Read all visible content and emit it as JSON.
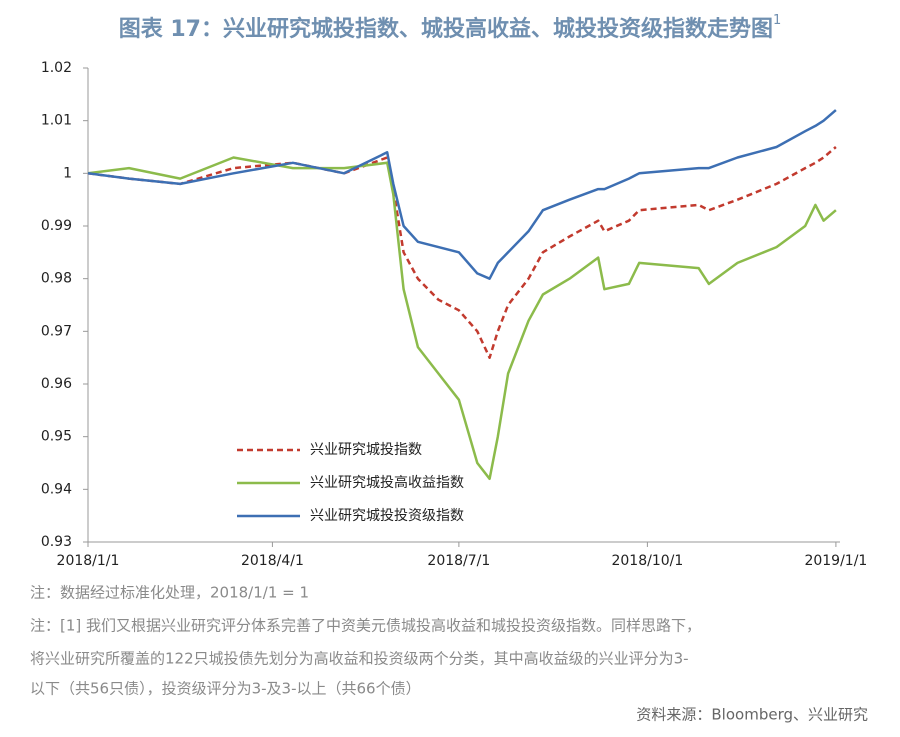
{
  "chart_data": {
    "type": "line",
    "title": "图表 17：兴业研究城投指数、城投高收益、城投投资级指数走势图",
    "title_superscript": "1",
    "x": [
      "2018/1/1",
      "2018/1/21",
      "2018/2/15",
      "2018/3/13",
      "2018/4/11",
      "2018/5/6",
      "2018/5/27",
      "2018/5/30",
      "2018/6/4",
      "2018/6/11",
      "2018/6/21",
      "2018/7/1",
      "2018/7/10",
      "2018/7/16",
      "2018/7/20",
      "2018/7/25",
      "2018/8/4",
      "2018/8/11",
      "2018/8/24",
      "2018/9/7",
      "2018/9/10",
      "2018/9/22",
      "2018/9/27",
      "2018/10/26",
      "2018/10/31",
      "2018/11/14",
      "2018/12/3",
      "2018/12/17",
      "2018/12/22",
      "2018/12/26",
      "2019/1/1"
    ],
    "series": [
      {
        "name": "兴业研究城投指数",
        "color": "#c23a2e",
        "dashed": true,
        "values": [
          1.0,
          0.999,
          0.998,
          1.001,
          1.002,
          1.0,
          1.003,
          0.997,
          0.985,
          0.98,
          0.976,
          0.974,
          0.97,
          0.965,
          0.97,
          0.975,
          0.98,
          0.985,
          0.988,
          0.991,
          0.989,
          0.991,
          0.993,
          0.994,
          0.993,
          0.995,
          0.998,
          1.001,
          1.002,
          1.003,
          1.005
        ]
      },
      {
        "name": "兴业研究城投高收益指数",
        "color": "#8cbb4b",
        "dashed": false,
        "values": [
          1.0,
          1.001,
          0.999,
          1.003,
          1.001,
          1.001,
          1.002,
          0.996,
          0.978,
          0.967,
          0.962,
          0.957,
          0.945,
          0.942,
          0.95,
          0.962,
          0.972,
          0.977,
          0.98,
          0.984,
          0.978,
          0.979,
          0.983,
          0.982,
          0.979,
          0.983,
          0.986,
          0.99,
          0.994,
          0.991,
          0.993
        ]
      },
      {
        "name": "兴业研究城投投资级指数",
        "color": "#3d6fb3",
        "dashed": false,
        "values": [
          1.0,
          0.999,
          0.998,
          1.0,
          1.002,
          1.0,
          1.004,
          0.998,
          0.99,
          0.987,
          0.986,
          0.985,
          0.981,
          0.98,
          0.983,
          0.985,
          0.989,
          0.993,
          0.995,
          0.997,
          0.997,
          0.999,
          1.0,
          1.001,
          1.001,
          1.003,
          1.005,
          1.008,
          1.009,
          1.01,
          1.012
        ]
      }
    ],
    "xlim": [
      "2018/1/1",
      "2019/1/3"
    ],
    "xticks": [
      "2018/1/1",
      "2018/4/1",
      "2018/7/1",
      "2018/10/1",
      "2019/1/1"
    ],
    "ylim": [
      0.93,
      1.02
    ],
    "yticks": [
      0.93,
      0.94,
      0.95,
      0.96,
      0.97,
      0.98,
      0.99,
      1,
      1.01,
      1.02
    ],
    "grid": false,
    "legend": "lower-left",
    "notes": [
      "注：数据经过标准化处理，2018/1/1 = 1",
      "注：[1] 我们又根据兴业研究评分体系完善了中资美元债城投高收益和城投投资级指数。同样思路下，",
      "将兴业研究所覆盖的122只城投债先划分为高收益和投资级两个分类，其中高收益级的兴业评分为3-",
      "以下（共56只债），投资级评分为3-及3-以上（共66个债）"
    ],
    "source": "资料来源：Bloomberg、兴业研究"
  }
}
